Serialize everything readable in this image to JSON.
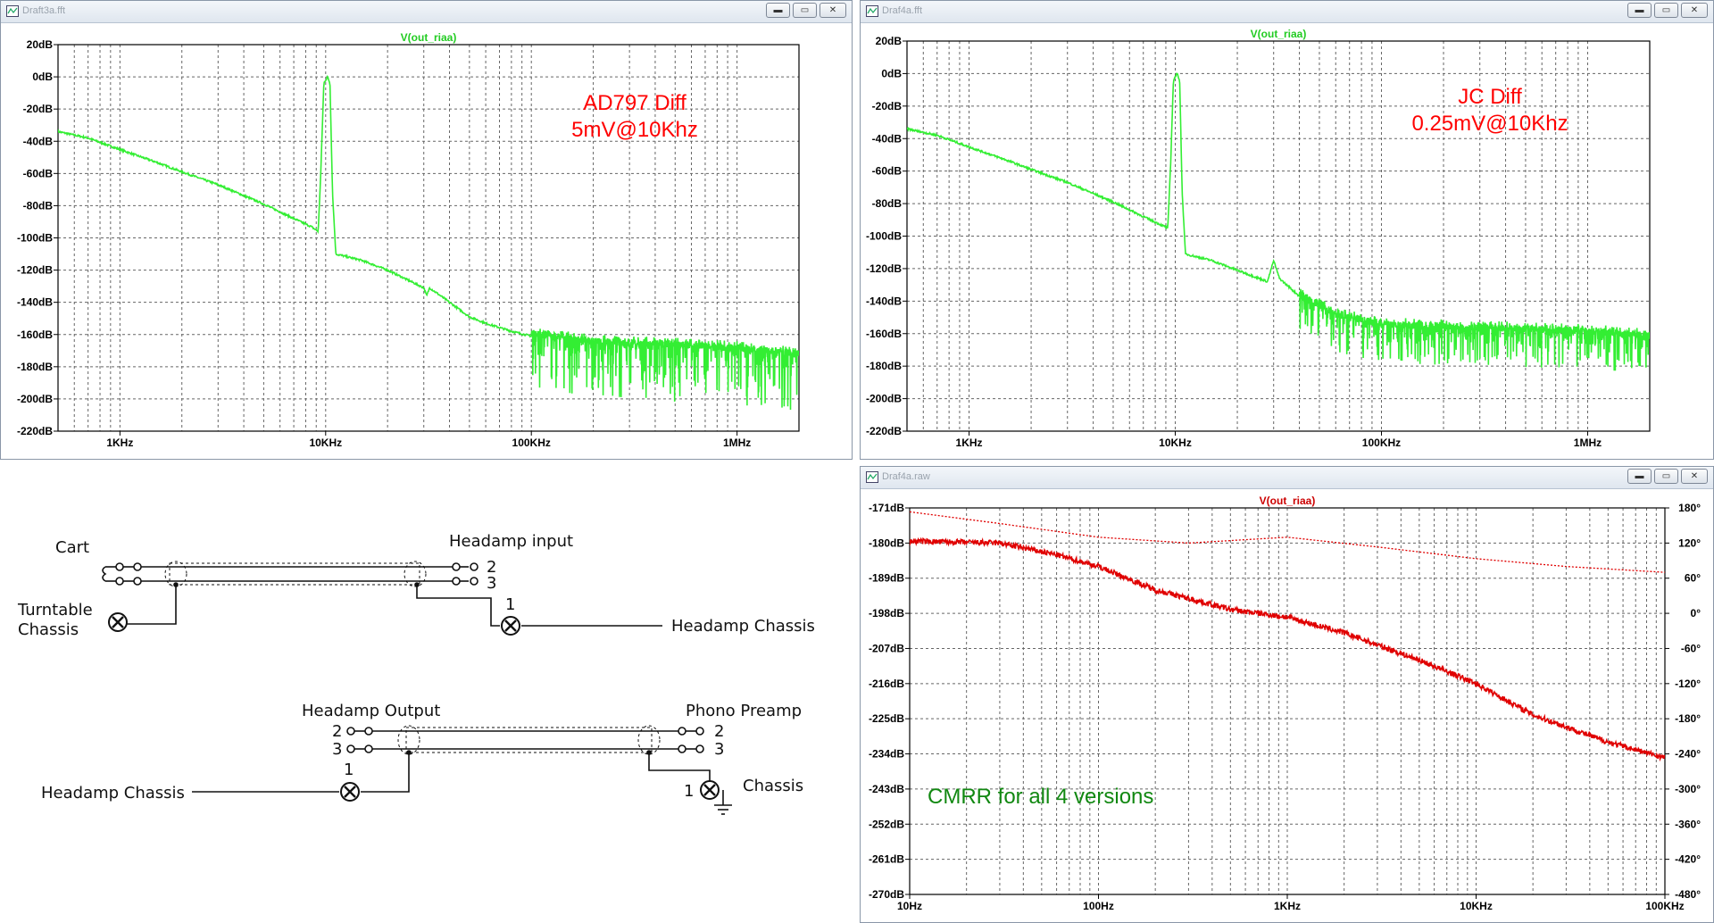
{
  "colors": {
    "trace_green": "#33ee33",
    "trace_red": "#e00000",
    "annot_red": "#ff0000",
    "annot_green": "#118811",
    "grid": "#555555"
  },
  "windows": [
    {
      "id": "w1",
      "title": "Draft3a.fft",
      "buttons": [
        "minimize",
        "maximize",
        "close"
      ]
    },
    {
      "id": "w2",
      "title": "Draf4a.fft",
      "buttons": [
        "minimize",
        "maximize",
        "close"
      ]
    },
    {
      "id": "w3",
      "title": "Draf4a.raw",
      "buttons": [
        "minimize",
        "maximize",
        "close"
      ]
    }
  ],
  "chart_data": [
    {
      "type": "line",
      "title": "V(out_riaa)",
      "x_scale": "log",
      "xlim": [
        500,
        2000000
      ],
      "ylim": [
        -220,
        20
      ],
      "y_ticks": [
        "20dB",
        "0dB",
        "-20dB",
        "-40dB",
        "-60dB",
        "-80dB",
        "-100dB",
        "-120dB",
        "-140dB",
        "-160dB",
        "-180dB",
        "-200dB",
        "-220dB"
      ],
      "x_ticks": [
        "1KHz",
        "10KHz",
        "100KHz",
        "1MHz"
      ],
      "annotation": [
        "AD797 Diff",
        "5mV@10Khz"
      ],
      "grid": true,
      "series": [
        {
          "points": [
            [
              500,
              -34
            ],
            [
              700,
              -38
            ],
            [
              900,
              -43
            ],
            [
              1100,
              -47
            ],
            [
              1500,
              -53
            ],
            [
              2000,
              -59
            ],
            [
              3000,
              -67
            ],
            [
              5000,
              -79
            ],
            [
              7000,
              -88
            ],
            [
              8500,
              -93
            ],
            [
              9200,
              -96
            ],
            [
              9500,
              -55
            ],
            [
              9800,
              -4
            ],
            [
              10200,
              0
            ],
            [
              10500,
              -4
            ],
            [
              10800,
              -72
            ],
            [
              11200,
              -110
            ],
            [
              15000,
              -114
            ],
            [
              20000,
              -120
            ],
            [
              30000,
              -131
            ],
            [
              31000,
              -136
            ],
            [
              32000,
              -131
            ],
            [
              50000,
              -149
            ],
            [
              60000,
              -153
            ],
            [
              80000,
              -158
            ],
            [
              100000,
              -161
            ],
            [
              200000,
              -166
            ],
            [
              500000,
              -168
            ],
            [
              1000000,
              -170
            ],
            [
              2000000,
              -174
            ]
          ],
          "noise": {
            "from_x": 100000,
            "to_x": 2000000,
            "floor": -168,
            "spread": 34
          }
        }
      ]
    },
    {
      "type": "line",
      "title": "V(out_riaa)",
      "x_scale": "log",
      "xlim": [
        500,
        2000000
      ],
      "ylim": [
        -220,
        20
      ],
      "y_ticks": [
        "20dB",
        "0dB",
        "-20dB",
        "-40dB",
        "-60dB",
        "-80dB",
        "-100dB",
        "-120dB",
        "-140dB",
        "-160dB",
        "-180dB",
        "-200dB",
        "-220dB"
      ],
      "x_ticks": [
        "1KHz",
        "10KHz",
        "100KHz",
        "1MHz"
      ],
      "annotation": [
        "JC Diff",
        "0.25mV@10Khz"
      ],
      "grid": true,
      "series": [
        {
          "points": [
            [
              500,
              -34
            ],
            [
              700,
              -38
            ],
            [
              900,
              -43
            ],
            [
              1100,
              -47
            ],
            [
              1500,
              -53
            ],
            [
              2000,
              -59
            ],
            [
              3000,
              -67
            ],
            [
              5000,
              -79
            ],
            [
              7000,
              -88
            ],
            [
              8500,
              -93
            ],
            [
              9200,
              -95
            ],
            [
              9500,
              -55
            ],
            [
              9800,
              -4
            ],
            [
              10200,
              0
            ],
            [
              10500,
              -4
            ],
            [
              10800,
              -72
            ],
            [
              11200,
              -111
            ],
            [
              15000,
              -115
            ],
            [
              20000,
              -121
            ],
            [
              28000,
              -128
            ],
            [
              30000,
              -115
            ],
            [
              32000,
              -126
            ],
            [
              40000,
              -137
            ],
            [
              60000,
              -150
            ],
            [
              100000,
              -156
            ],
            [
              300000,
              -158
            ],
            [
              1000000,
              -160
            ],
            [
              2000000,
              -163
            ]
          ],
          "noise": {
            "from_x": 40000,
            "to_x": 2000000,
            "floor": -158,
            "spread": 22
          }
        }
      ]
    },
    {
      "type": "line",
      "title": "V(out_riaa)",
      "x_scale": "log",
      "xlim": [
        10,
        100000
      ],
      "ylim": [
        -270,
        -171
      ],
      "y_ticks": [
        "-171dB",
        "-180dB",
        "-189dB",
        "-198dB",
        "-207dB",
        "-216dB",
        "-225dB",
        "-234dB",
        "-243dB",
        "-252dB",
        "-261dB",
        "-270dB"
      ],
      "y2_ticks": [
        "180°",
        "120°",
        "60°",
        "0°",
        "-60°",
        "-120°",
        "-180°",
        "-240°",
        "-300°",
        "-360°",
        "-420°",
        "-480°"
      ],
      "x_ticks": [
        "10Hz",
        "100Hz",
        "1KHz",
        "10KHz",
        "100KHz"
      ],
      "annotation": [
        "CMRR for all 4 versions"
      ],
      "grid": true,
      "series": [
        {
          "style": "solid",
          "points": [
            [
              10,
              -179.5
            ],
            [
              30,
              -180
            ],
            [
              60,
              -183
            ],
            [
              100,
              -186
            ],
            [
              200,
              -192
            ],
            [
              500,
              -197
            ],
            [
              1000,
              -199
            ],
            [
              2000,
              -203
            ],
            [
              5000,
              -210
            ],
            [
              10000,
              -216
            ],
            [
              20000,
              -224
            ],
            [
              50000,
              -231
            ],
            [
              100000,
              -235
            ]
          ]
        },
        {
          "style": "dotted",
          "points": [
            [
              10,
              -172
            ],
            [
              30,
              -175
            ],
            [
              100,
              -178.5
            ],
            [
              300,
              -180
            ],
            [
              1000,
              -178.5
            ],
            [
              3000,
              -181
            ],
            [
              10000,
              -184
            ],
            [
              30000,
              -186
            ],
            [
              100000,
              -187.5
            ]
          ]
        }
      ]
    }
  ],
  "schematic": {
    "labels": {
      "cart": "Cart",
      "headamp_input": "Headamp input",
      "turntable_chassis_1": "Turntable",
      "turntable_chassis_2": "Chassis",
      "headamp_chassis_top": "Headamp Chassis",
      "headamp_output": "Headamp Output",
      "phono_preamp": "Phono Preamp",
      "headamp_chassis_bottom": "Headamp Chassis",
      "chassis": "Chassis",
      "pin1_top": "1",
      "pin2_top": "2",
      "pin3_top": "3",
      "pin2_out_left": "2",
      "pin3_out_left": "3",
      "pin1_out_left": "1",
      "pin2_out_right": "2",
      "pin3_out_right": "3",
      "pin1_out_right": "1"
    }
  }
}
